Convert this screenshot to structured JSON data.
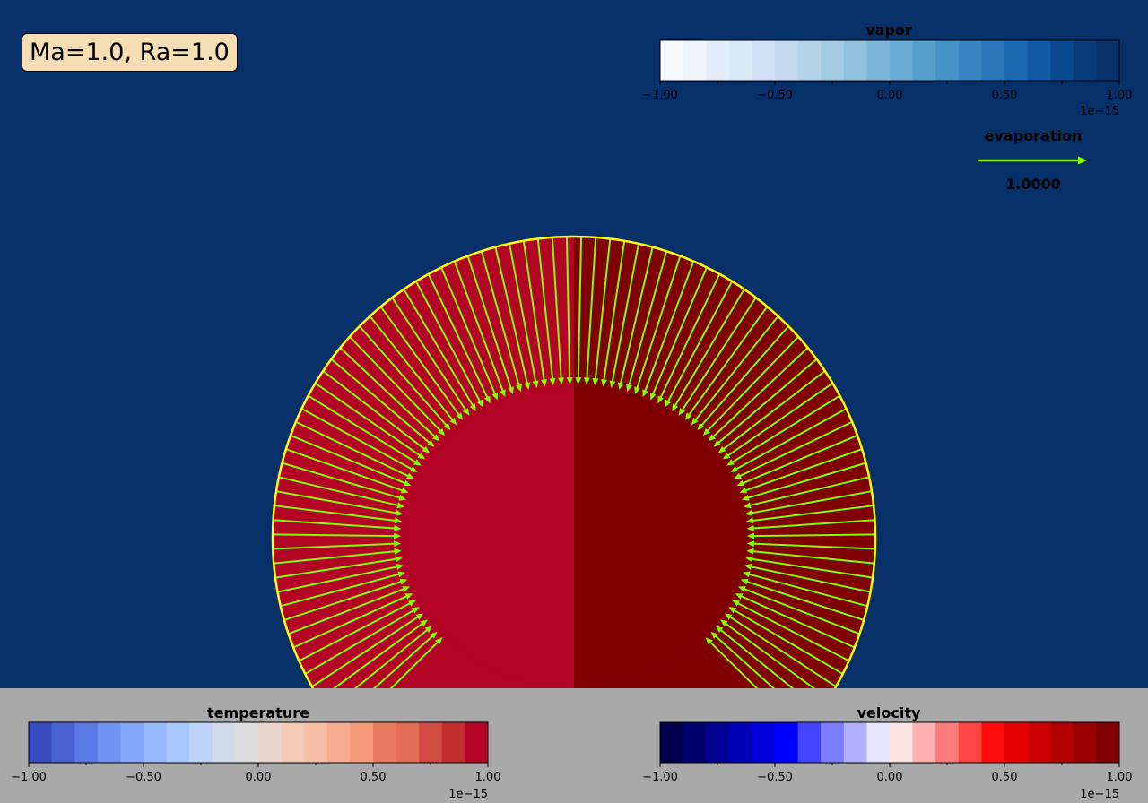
{
  "title": "Ma=1.0, Ra=1.0",
  "colors": {
    "background": "#083068",
    "panel": "#a9a9a9",
    "drop_left": "#b40426",
    "drop_right": "#800000",
    "arrows": "#80ff00",
    "interface": "#ffff00",
    "title_box": "#f5deb3"
  },
  "chart_data": [
    {
      "type": "colorbar",
      "name": "vapor",
      "title": "vapor",
      "colormap": "Blues",
      "range": [
        -1.0,
        1.0
      ],
      "levels": 20,
      "ticks": [
        "−1.00",
        "−0.50",
        "0.00",
        "0.50",
        "1.00"
      ],
      "offset": "1e−15",
      "colors": [
        "#f7fbff",
        "#eef5fc",
        "#e3eef8",
        "#d9e8f5",
        "#cfe1f2",
        "#c3daee",
        "#b4d3e9",
        "#a3cce3",
        "#91c3de",
        "#7cb7da",
        "#69add5",
        "#57a0ce",
        "#4792c6",
        "#3884c1",
        "#2a76b8",
        "#1c68af",
        "#1159a2",
        "#084990",
        "#083b7b",
        "#08306b"
      ]
    },
    {
      "type": "colorbar",
      "name": "temperature",
      "title": "temperature",
      "colormap": "coolwarm",
      "range": [
        -1.0,
        1.0
      ],
      "levels": 20,
      "ticks": [
        "−1.00",
        "−0.50",
        "0.00",
        "0.50",
        "1.00"
      ],
      "offset": "1e−15",
      "colors": [
        "#3b4cc0",
        "#4961d2",
        "#5b7ae5",
        "#6f92f3",
        "#84a7fc",
        "#98b9ff",
        "#abc8fd",
        "#bfd3f6",
        "#d0daea",
        "#dddcdc",
        "#e9d5cb",
        "#f2cab5",
        "#f6bfa6",
        "#f5ac8f",
        "#f39a7b",
        "#ea7b60",
        "#e36c55",
        "#d24b40",
        "#c32e31",
        "#b40426"
      ]
    },
    {
      "type": "colorbar",
      "name": "velocity",
      "title": "velocity",
      "colormap": "seismic",
      "range": [
        -1.0,
        1.0
      ],
      "levels": 20,
      "ticks": [
        "−1.00",
        "−0.50",
        "0.00",
        "0.50",
        "1.00"
      ],
      "offset": "1e−15",
      "colors": [
        "#00004c",
        "#000070",
        "#000093",
        "#0000b7",
        "#0000db",
        "#0000ff",
        "#4444ff",
        "#7c7cff",
        "#b0b0ff",
        "#e4e4ff",
        "#ffe4e4",
        "#ffb0b0",
        "#ff7c7c",
        "#ff4444",
        "#ff0c0c",
        "#e50000",
        "#cc0000",
        "#b20000",
        "#990000",
        "#800000"
      ]
    },
    {
      "type": "quiver",
      "name": "evaporation",
      "title": "evaporation",
      "key_value": "1.0000",
      "arrow_count": 96,
      "arrow_direction": "inward from interface toward drop surface",
      "domain": "half droplet cross-section"
    }
  ]
}
